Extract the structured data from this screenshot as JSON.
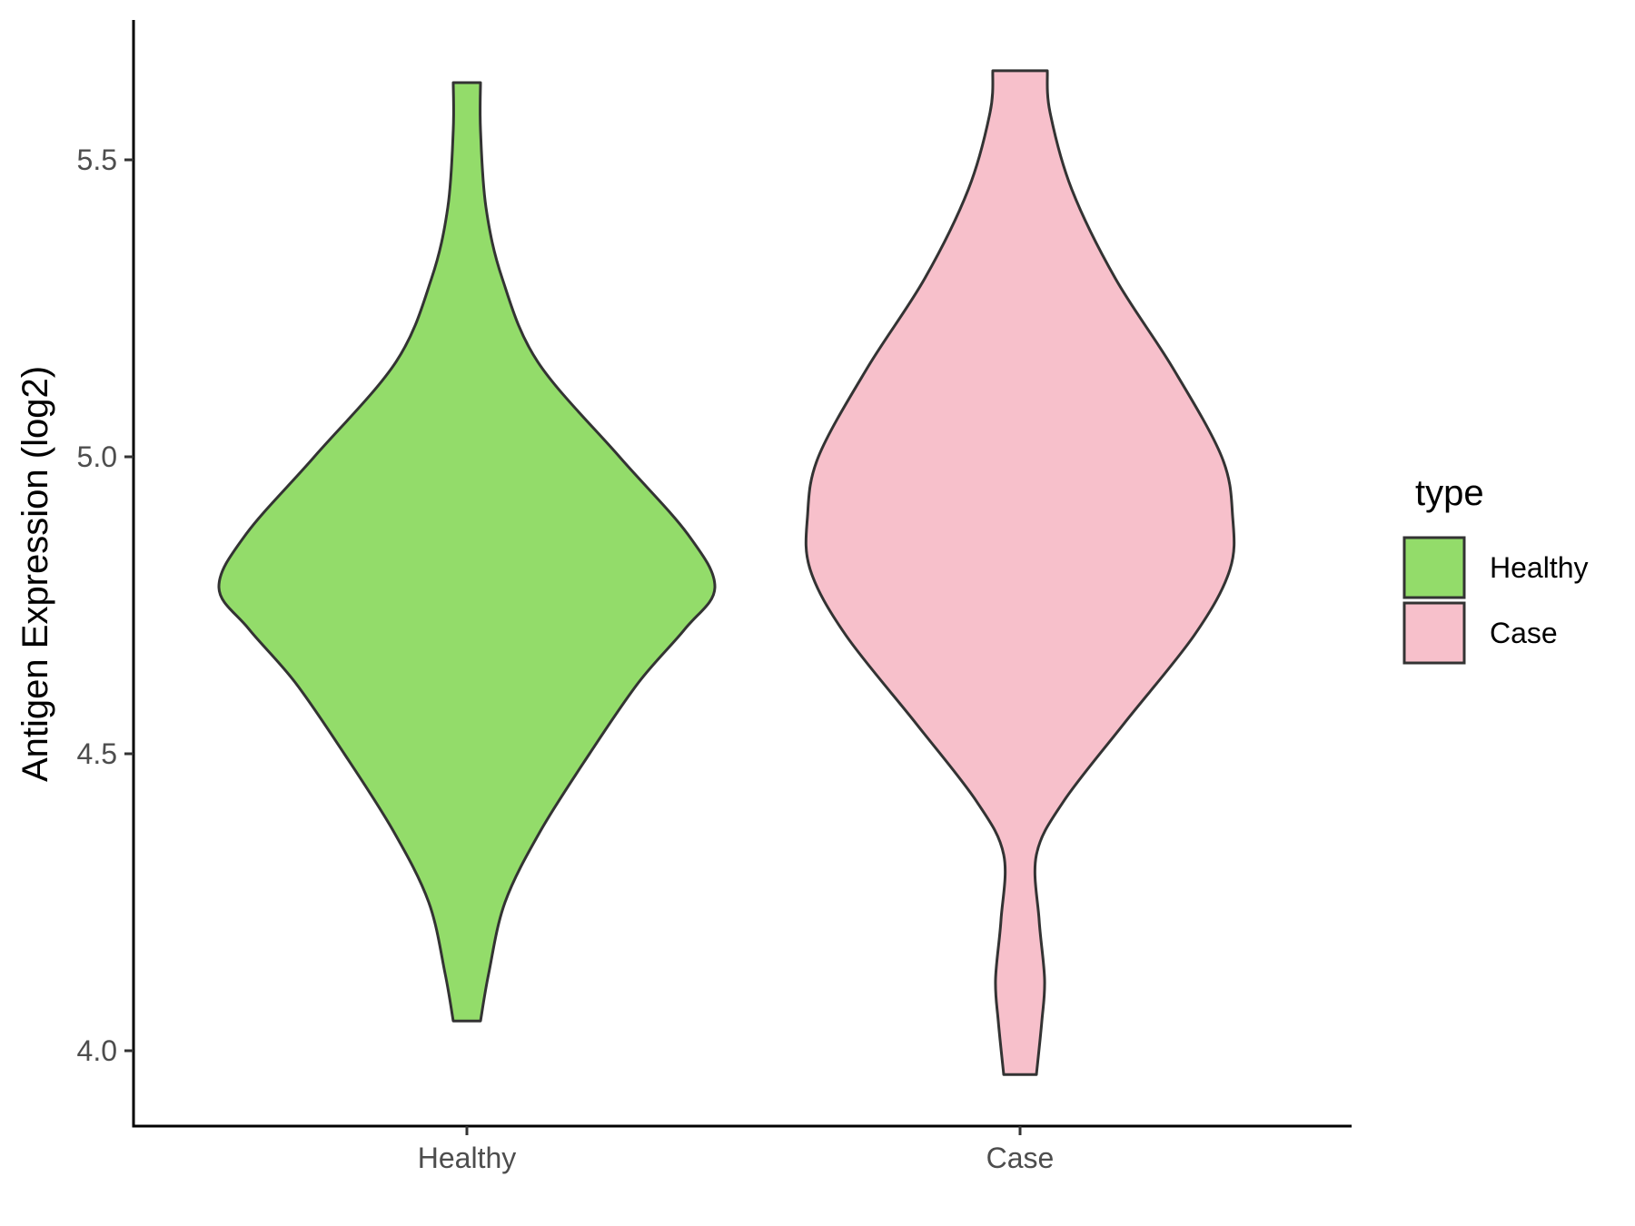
{
  "chart_data": {
    "type": "violin",
    "title": "",
    "xlabel": "",
    "ylabel": "Antigen Expression (log2)",
    "ylim": [
      3.88,
      5.74
    ],
    "yticks": [
      4.0,
      4.5,
      5.0,
      5.5
    ],
    "ytick_labels": [
      "4.0",
      "4.5",
      "5.0",
      "5.5"
    ],
    "categories": [
      "Healthy",
      "Case"
    ],
    "grid": false,
    "legend": {
      "title": "type",
      "position": "right",
      "entries": [
        {
          "label": "Healthy",
          "color": "#93dc6a"
        },
        {
          "label": "Case",
          "color": "#f7c0cb"
        }
      ]
    },
    "series": [
      {
        "category": "Healthy",
        "color": "#93dc6a",
        "min": 4.05,
        "max": 5.63,
        "density_profile": [
          {
            "y": 4.05,
            "half_width_rel": 0.05
          },
          {
            "y": 4.13,
            "half_width_rel": 0.08
          },
          {
            "y": 4.25,
            "half_width_rel": 0.14
          },
          {
            "y": 4.37,
            "half_width_rel": 0.27
          },
          {
            "y": 4.5,
            "half_width_rel": 0.45
          },
          {
            "y": 4.62,
            "half_width_rel": 0.63
          },
          {
            "y": 4.71,
            "half_width_rel": 0.8
          },
          {
            "y": 4.78,
            "half_width_rel": 0.91
          },
          {
            "y": 4.87,
            "half_width_rel": 0.81
          },
          {
            "y": 5.0,
            "half_width_rel": 0.56
          },
          {
            "y": 5.16,
            "half_width_rel": 0.26
          },
          {
            "y": 5.3,
            "half_width_rel": 0.13
          },
          {
            "y": 5.42,
            "half_width_rel": 0.07
          },
          {
            "y": 5.55,
            "half_width_rel": 0.05
          },
          {
            "y": 5.63,
            "half_width_rel": 0.05
          }
        ]
      },
      {
        "category": "Case",
        "color": "#f7c0cb",
        "min": 3.96,
        "max": 5.65,
        "density_profile": [
          {
            "y": 3.96,
            "half_width_rel": 0.06
          },
          {
            "y": 4.05,
            "half_width_rel": 0.08
          },
          {
            "y": 4.12,
            "half_width_rel": 0.09
          },
          {
            "y": 4.22,
            "half_width_rel": 0.07
          },
          {
            "y": 4.33,
            "half_width_rel": 0.06
          },
          {
            "y": 4.42,
            "half_width_rel": 0.16
          },
          {
            "y": 4.55,
            "half_width_rel": 0.38
          },
          {
            "y": 4.7,
            "half_width_rel": 0.64
          },
          {
            "y": 4.81,
            "half_width_rel": 0.77
          },
          {
            "y": 4.9,
            "half_width_rel": 0.78
          },
          {
            "y": 5.0,
            "half_width_rel": 0.74
          },
          {
            "y": 5.15,
            "half_width_rel": 0.56
          },
          {
            "y": 5.3,
            "half_width_rel": 0.35
          },
          {
            "y": 5.45,
            "half_width_rel": 0.19
          },
          {
            "y": 5.58,
            "half_width_rel": 0.11
          },
          {
            "y": 5.65,
            "half_width_rel": 0.1
          }
        ]
      }
    ]
  }
}
